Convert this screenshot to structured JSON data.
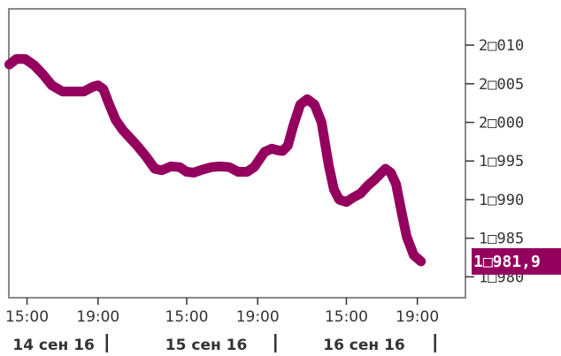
{
  "chart_data": {
    "type": "line",
    "ylim": [
      1977.3,
      2014.7
    ],
    "y_ticks": [
      {
        "value": 2010,
        "label": "2□010"
      },
      {
        "value": 2005,
        "label": "2□005"
      },
      {
        "value": 2000,
        "label": "2□000"
      },
      {
        "value": 1995,
        "label": "1□995"
      },
      {
        "value": 1990,
        "label": "1□990"
      },
      {
        "value": 1985,
        "label": "1□985"
      },
      {
        "value": 1980,
        "label": "1□980"
      }
    ],
    "x_ticks": [
      {
        "x": 0.5,
        "label": "15:00"
      },
      {
        "x": 2.5,
        "label": "19:00"
      },
      {
        "x": 5.0,
        "label": "15:00"
      },
      {
        "x": 7.0,
        "label": "19:00"
      },
      {
        "x": 9.5,
        "label": "15:00"
      },
      {
        "x": 11.5,
        "label": "19:00"
      }
    ],
    "day_labels": [
      {
        "x": 1.25,
        "label": "14 сен 16"
      },
      {
        "x": 5.55,
        "label": "15 сен 16"
      },
      {
        "x": 10.0,
        "label": "16 сен 16"
      }
    ],
    "day_separators": [
      2.75,
      7.5,
      12.0
    ],
    "xlim": [
      0,
      12.5
    ],
    "x": [
      0.0,
      0.2,
      0.45,
      0.7,
      0.95,
      1.2,
      1.5,
      1.8,
      2.1,
      2.35,
      2.5,
      2.65,
      2.8,
      3.0,
      3.2,
      3.4,
      3.6,
      3.85,
      4.1,
      4.3,
      4.55,
      4.8,
      5.0,
      5.2,
      5.45,
      5.7,
      5.95,
      6.2,
      6.45,
      6.7,
      6.9,
      7.05,
      7.2,
      7.4,
      7.55,
      7.7,
      7.85,
      8.0,
      8.2,
      8.4,
      8.6,
      8.8,
      9.0,
      9.15,
      9.3,
      9.5,
      9.7,
      9.9,
      10.1,
      10.3,
      10.45,
      10.6,
      10.75,
      10.9,
      11.05,
      11.2,
      11.4,
      11.6
    ],
    "values": [
      2007.5,
      2008.2,
      2008.2,
      2007.4,
      2006.2,
      2004.8,
      2004.0,
      2004.0,
      2004.0,
      2004.6,
      2004.8,
      2004.3,
      2002.5,
      2000.3,
      1999.0,
      1998.0,
      1997.0,
      1995.6,
      1994.0,
      1993.8,
      1994.3,
      1994.2,
      1993.6,
      1993.5,
      1993.9,
      1994.2,
      1994.3,
      1994.2,
      1993.6,
      1993.6,
      1994.2,
      1995.2,
      1996.2,
      1996.6,
      1996.4,
      1996.3,
      1997.0,
      1999.5,
      2002.3,
      2003.0,
      2002.3,
      2000.0,
      1994.5,
      1991.3,
      1990.0,
      1989.7,
      1990.3,
      1990.8,
      1991.8,
      1992.6,
      1993.3,
      1994.0,
      1993.5,
      1992.0,
      1988.5,
      1985.2,
      1982.8,
      1982.0
    ],
    "last_value_label": "1□981,9",
    "colors": {
      "line": "#94005e",
      "frame": "#888888",
      "text": "#333333",
      "label_bg": "#94005e"
    }
  }
}
